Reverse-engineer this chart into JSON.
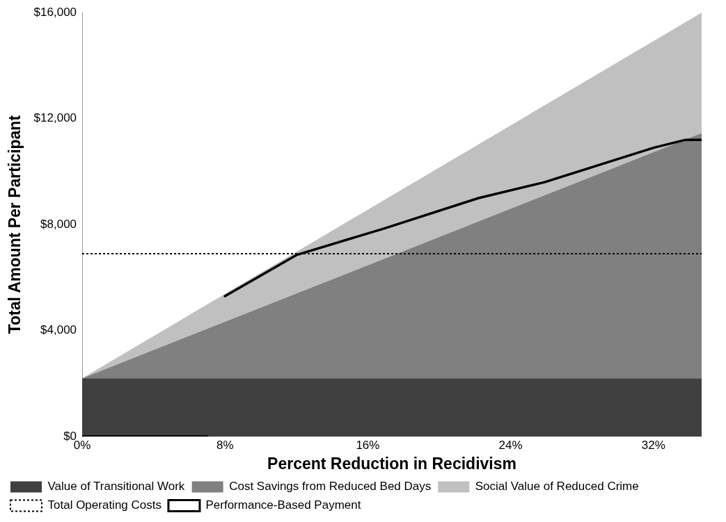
{
  "chart_data": {
    "type": "area",
    "stacked": true,
    "xlabel": "Percent Reduction in Recidivism",
    "ylabel": "Total Amount Per Participant",
    "x": [
      0,
      34.7
    ],
    "xlim": [
      0,
      34.7
    ],
    "xticks": [
      {
        "value": 0,
        "label": "0%"
      },
      {
        "value": 8,
        "label": "8%"
      },
      {
        "value": 16,
        "label": "16%"
      },
      {
        "value": 24,
        "label": "24%"
      },
      {
        "value": 32,
        "label": "32%"
      }
    ],
    "ylim": [
      0,
      16000
    ],
    "yticks": [
      {
        "value": 0,
        "label": "$0"
      },
      {
        "value": 4000,
        "label": "$4,000"
      },
      {
        "value": 8000,
        "label": "$8,000"
      },
      {
        "value": 12000,
        "label": "$12,000"
      },
      {
        "value": 16000,
        "label": "$16,000"
      }
    ],
    "series": [
      {
        "name": "Value of Transitional Work",
        "color": "#404040",
        "values": [
          2200,
          2200
        ]
      },
      {
        "name": "Cost Savings from Reduced Bed Days",
        "color": "#808080",
        "values": [
          0,
          9250
        ]
      },
      {
        "name": "Social Value of Reduced Crime",
        "color": "#c0c0c0",
        "values": [
          0,
          4550
        ]
      },
      {
        "name": "Performance-Based Payment",
        "type": "line",
        "color": "#000000",
        "x": [
          0,
          7,
          7.5,
          8,
          12,
          16.9,
          22.2,
          25.9,
          32,
          33.8,
          34.7
        ],
        "values": [
          0,
          0,
          null,
          5300,
          6850,
          7850,
          9000,
          9600,
          10900,
          11200,
          11200
        ]
      }
    ],
    "ref_lines": [
      {
        "axis": "y",
        "value": 6900,
        "label": "Total Operating Costs",
        "color": "#000000",
        "line_style": "dotted"
      }
    ],
    "legend": "bottom",
    "grid": false,
    "marker": "none"
  }
}
